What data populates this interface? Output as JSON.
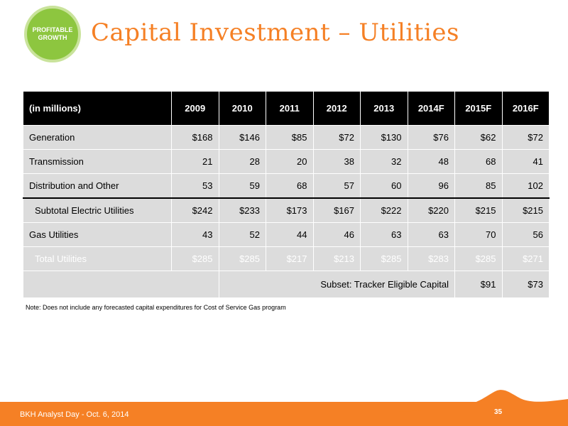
{
  "badge": {
    "line1": "PROFITABLE",
    "line2": "GROWTH"
  },
  "title": "Capital Investment – Utilities",
  "table": {
    "headers": [
      "(in millions)",
      "2009",
      "2010",
      "2011",
      "2012",
      "2013",
      "2014F",
      "2015F",
      "2016F"
    ],
    "rows": [
      {
        "label": "Generation",
        "values": [
          "$168",
          "$146",
          "$85",
          "$72",
          "$130",
          "$76",
          "$62",
          "$72"
        ]
      },
      {
        "label": "Transmission",
        "values": [
          "21",
          "28",
          "20",
          "38",
          "32",
          "48",
          "68",
          "41"
        ]
      },
      {
        "label": "Distribution and Other",
        "values": [
          "53",
          "59",
          "68",
          "57",
          "60",
          "96",
          "85",
          "102"
        ]
      },
      {
        "label": "Subtotal Electric Utilities",
        "values": [
          "$242",
          "$233",
          "$173",
          "$167",
          "$222",
          "$220",
          "$215",
          "$215"
        ]
      },
      {
        "label": "Gas Utilities",
        "values": [
          "43",
          "52",
          "44",
          "46",
          "63",
          "63",
          "70",
          "56"
        ]
      },
      {
        "label": "Total Utilities",
        "values": [
          "$285",
          "$285",
          "$217",
          "$213",
          "$285",
          "$283",
          "$285",
          "$271"
        ]
      }
    ],
    "tracker": {
      "label": "Subset:  Tracker Eligible Capital",
      "values": [
        "$91",
        "$73"
      ]
    }
  },
  "note": "Note: Does not include any forecasted capital expenditures for Cost of Service Gas program",
  "footer": {
    "text": "BKH Analyst Day - Oct. 6, 2014",
    "page": "35"
  },
  "colors": {
    "accent": "#f58025",
    "badge": "#8dc63f",
    "header": "#000000",
    "row": "#dcdcdc"
  }
}
